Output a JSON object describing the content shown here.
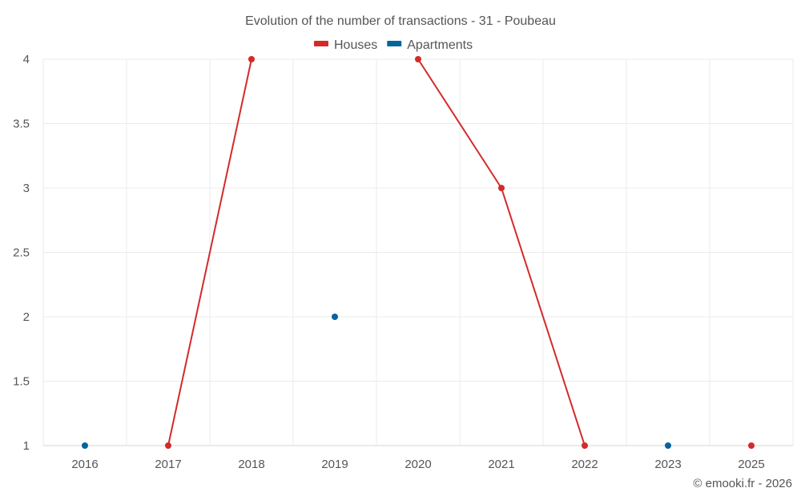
{
  "chart_data": {
    "type": "line",
    "title": "Evolution of the number of transactions - 31 - Poubeau",
    "categories": [
      "2016",
      "2017",
      "2018",
      "2019",
      "2020",
      "2021",
      "2022",
      "2023",
      "2025"
    ],
    "series": [
      {
        "name": "Houses",
        "color": "#d42a2a",
        "values": [
          null,
          1,
          4,
          null,
          4,
          3,
          1,
          null,
          1
        ]
      },
      {
        "name": "Apartments",
        "color": "#06649c",
        "values": [
          1,
          null,
          null,
          2,
          null,
          null,
          null,
          1,
          null
        ]
      }
    ],
    "ylim": [
      1,
      4
    ],
    "yticks": [
      "1",
      "1.5",
      "2",
      "2.5",
      "3",
      "3.5",
      "4"
    ],
    "xlabel": "",
    "ylabel": "",
    "grid": true,
    "legend": "top-center"
  },
  "credit": "© emooki.fr - 2026"
}
